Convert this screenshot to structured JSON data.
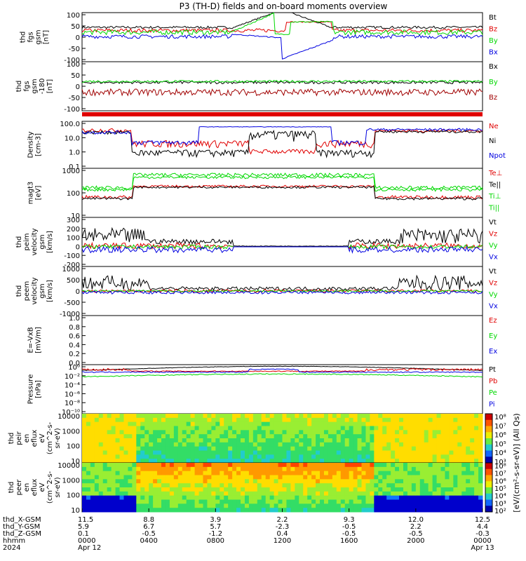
{
  "title": "P3 (TH-D) fields and on-board moments overview",
  "colors": {
    "black": "#000000",
    "red": "#e00000",
    "green": "#00d800",
    "blue": "#0000e0",
    "darkred": "#a00000"
  },
  "chart_data": {
    "type": "line",
    "panels": [
      {
        "name": "fgs-gsm",
        "ylabel": [
          "thd",
          "fgs",
          "gsm",
          "[nT]"
        ],
        "yticks": [
          "100",
          "50",
          "0",
          "-50",
          "-100"
        ],
        "ylim": [
          -100,
          100
        ],
        "series": [
          {
            "name": "Bt",
            "color": "black"
          },
          {
            "name": "Bz",
            "color": "red"
          },
          {
            "name": "By",
            "color": "green"
          },
          {
            "name": "Bx",
            "color": "blue"
          }
        ]
      },
      {
        "name": "fgs-gsm-zoom",
        "ylabel": [
          "thd",
          "fgs",
          "gsm",
          "-180",
          "[nT]"
        ],
        "yticks": [
          "100",
          "50",
          "0",
          "-50",
          "-100"
        ],
        "ylim": [
          -125,
          100
        ],
        "series": [
          {
            "name": "Bx",
            "color": "black"
          },
          {
            "name": "By",
            "color": "green"
          },
          {
            "name": "Bz",
            "color": "darkred"
          }
        ]
      },
      {
        "name": "density",
        "ylabel": [
          "Density",
          "[cm-3]"
        ],
        "yticks": [
          "100.0",
          "10.0",
          "1.0",
          "0.1"
        ],
        "ylim": [
          0.1,
          100
        ],
        "series": [
          {
            "name": "Ne",
            "color": "red"
          },
          {
            "name": "Ni",
            "color": "black"
          },
          {
            "name": "Npot",
            "color": "blue"
          }
        ]
      },
      {
        "name": "temperature",
        "ylabel": [
          "magt3",
          "[eV]"
        ],
        "yticks": [
          "1000",
          "100",
          "10"
        ],
        "ylim": [
          3,
          3000
        ],
        "series": [
          {
            "name": "Te⊥",
            "color": "red"
          },
          {
            "name": "Te||",
            "color": "black"
          },
          {
            "name": "Ti⊥",
            "color": "green"
          },
          {
            "name": "Ti||",
            "color": "green"
          }
        ]
      },
      {
        "name": "peim-velocity",
        "ylabel": [
          "thd",
          "peim",
          "velocity",
          "gsm",
          "[km/s]"
        ],
        "yticks": [
          "300",
          "200",
          "100",
          "0",
          "-100",
          "-200"
        ],
        "ylim": [
          -200,
          300
        ],
        "series": [
          {
            "name": "Vt",
            "color": "black"
          },
          {
            "name": "Vz",
            "color": "red"
          },
          {
            "name": "Vy",
            "color": "green"
          },
          {
            "name": "Vx",
            "color": "blue"
          }
        ]
      },
      {
        "name": "peem-velocity",
        "ylabel": [
          "thd",
          "peem",
          "velocity",
          "gsm",
          "[km/s]"
        ],
        "yticks": [
          "1000",
          "500",
          "0",
          "-500",
          "-1000"
        ],
        "ylim": [
          -1000,
          1000
        ],
        "series": [
          {
            "name": "Vt",
            "color": "black"
          },
          {
            "name": "Vz",
            "color": "red"
          },
          {
            "name": "Vy",
            "color": "green"
          },
          {
            "name": "Vx",
            "color": "blue"
          }
        ]
      },
      {
        "name": "efield",
        "ylabel": [
          "E=-VxB",
          "[mV/m]"
        ],
        "yticks": [
          "1.0",
          "0.8",
          "0.6",
          "0.4",
          "0.2",
          "0.0"
        ],
        "ylim": [
          0,
          1
        ],
        "series": [
          {
            "name": "Ez",
            "color": "red"
          },
          {
            "name": "Ey",
            "color": "green"
          },
          {
            "name": "Ex",
            "color": "blue"
          }
        ]
      },
      {
        "name": "pressure",
        "ylabel": [
          "Pressure",
          "[nPa]"
        ],
        "yticks": [
          "10⁰",
          "10⁻²",
          "10⁻⁴",
          "10⁻⁶",
          "10⁻⁸",
          "10⁻¹⁰"
        ],
        "ylim": [
          -10,
          0.5
        ],
        "series": [
          {
            "name": "Pt",
            "color": "black"
          },
          {
            "name": "Pb",
            "color": "red"
          },
          {
            "name": "Pe",
            "color": "green"
          },
          {
            "name": "Pi",
            "color": "blue"
          }
        ]
      },
      {
        "name": "peir-spectrogram",
        "ylabel": [
          "thd",
          "peir",
          "en",
          "eflux",
          "eV",
          "(cm^2-s-",
          "sr-eV)"
        ],
        "yticks": [
          "10000",
          "1000",
          "100",
          "10"
        ],
        "colorbar": [
          "10⁸",
          "10⁷",
          "10⁶",
          "10⁵",
          "10⁴",
          "10³"
        ]
      },
      {
        "name": "peer-spectrogram",
        "ylabel": [
          "thd",
          "peer",
          "en",
          "eflux",
          "eV",
          "(cm^2-s-",
          "sr-eV)"
        ],
        "yticks": [
          "10000",
          "1000",
          "100",
          "10"
        ],
        "colorbar": [
          "10⁸",
          "10⁷",
          "10⁶",
          "10⁵",
          "10⁴",
          "10³",
          "10²"
        ]
      }
    ],
    "colorbar_label": "[eV/(cm²-s-sr-eV)] (All Qs)",
    "x_axis": {
      "row_labels": [
        "thd_X-GSM",
        "thd_Y-GSM",
        "thd_Z-GSM",
        "hhmm",
        "2024"
      ],
      "ticks": [
        {
          "x": "11.5",
          "y": "5.9",
          "z": "0.1",
          "hhmm": "0000",
          "date": "Apr 12"
        },
        {
          "x": "8.8",
          "y": "6.7",
          "z": "-0.5",
          "hhmm": "0400",
          "date": ""
        },
        {
          "x": "3.9",
          "y": "5.7",
          "z": "-1.2",
          "hhmm": "0800",
          "date": ""
        },
        {
          "x": "2.2",
          "y": "-2.3",
          "z": "0.4",
          "hhmm": "1200",
          "date": ""
        },
        {
          "x": "9.3",
          "y": "-0.5",
          "z": "-0.5",
          "hhmm": "1600",
          "date": ""
        },
        {
          "x": "12.0",
          "y": "2.2",
          "z": "-0.5",
          "hhmm": "2000",
          "date": ""
        },
        {
          "x": "12.5",
          "y": "4.4",
          "z": "-0.3",
          "hhmm": "0000",
          "date": "Apr 13"
        }
      ],
      "xlim_hours": [
        0,
        24
      ]
    }
  }
}
